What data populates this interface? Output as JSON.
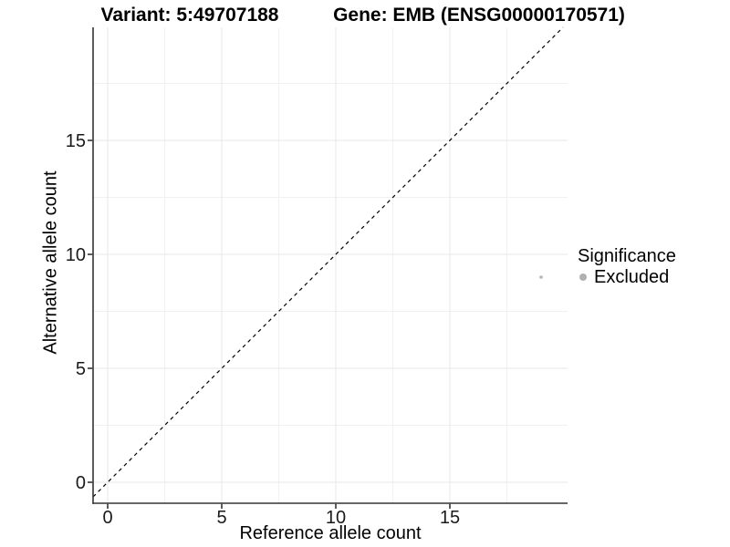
{
  "chart_data": {
    "type": "scatter",
    "titles": [
      "Variant: 5:49707188",
      "Gene: EMB (ENSG00000170571)"
    ],
    "xlabel": "Reference allele count",
    "ylabel": "Alternative allele count",
    "x_ticks": [
      0,
      5,
      10,
      15
    ],
    "y_ticks": [
      0,
      5,
      10,
      15
    ],
    "x_minor_ticks": [
      2.5,
      7.5,
      12.5,
      17.5
    ],
    "y_minor_ticks": [
      2.5,
      7.5,
      12.5,
      17.5
    ],
    "xlim": [
      -0.64,
      20.16
    ],
    "ylim": [
      -0.92,
      19.96
    ],
    "grid": true,
    "identity_line": {
      "style": "dashed",
      "color": "#000000"
    },
    "series": [
      {
        "name": "Excluded",
        "color": "#b4b4b4",
        "points": [
          {
            "x": 19,
            "y": 9
          }
        ]
      }
    ],
    "legend": {
      "title": "Significance",
      "position": "right",
      "items": [
        {
          "label": "Excluded",
          "color": "#b0b0b0"
        }
      ]
    },
    "colors": {
      "axis_line": "#333333",
      "tick_label": "#1a1a1a",
      "grid_major": "#e7e7e7",
      "grid_minor": "#f1f1f1"
    }
  }
}
